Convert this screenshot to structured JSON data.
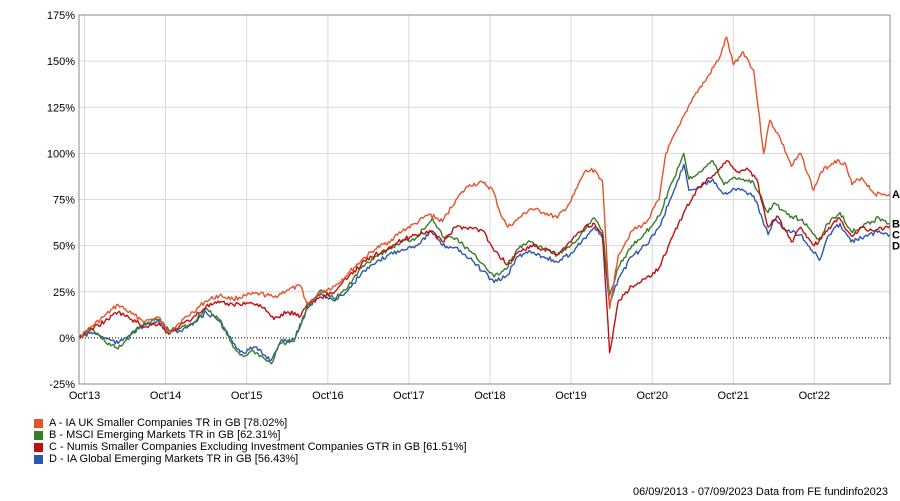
{
  "chart_data": {
    "type": "line",
    "ylim": [
      -25,
      175
    ],
    "y_ticks": [
      -25,
      0,
      25,
      50,
      75,
      100,
      125,
      150,
      175
    ],
    "y_tick_labels": [
      "-25%",
      "0%",
      "25%",
      "50%",
      "75%",
      "100%",
      "125%",
      "150%",
      "175%"
    ],
    "x_range": [
      "2013-09-06",
      "2023-09-07"
    ],
    "x_ticks": [
      "2013-10-01",
      "2014-10-01",
      "2015-10-01",
      "2016-10-01",
      "2017-10-01",
      "2018-10-01",
      "2019-10-01",
      "2020-10-01",
      "2021-10-01",
      "2022-10-01"
    ],
    "x_tick_labels": [
      "Oct'13",
      "Oct'14",
      "Oct'15",
      "Oct'16",
      "Oct'17",
      "Oct'18",
      "Oct'19",
      "Oct'20",
      "Oct'21",
      "Oct'22"
    ],
    "grid": true,
    "zero_line": "dotted",
    "legend_position": "bottom-left",
    "series": [
      {
        "letter": "A",
        "name": "A - IA UK Smaller Companies TR in GB [78.02%]",
        "color": "#e8522b",
        "points": [
          [
            "2013-09-06",
            0
          ],
          [
            "2013-11-01",
            6
          ],
          [
            "2014-01-01",
            12
          ],
          [
            "2014-03-01",
            18
          ],
          [
            "2014-05-01",
            13
          ],
          [
            "2014-07-01",
            9
          ],
          [
            "2014-09-01",
            11
          ],
          [
            "2014-10-15",
            3
          ],
          [
            "2014-12-01",
            8
          ],
          [
            "2015-02-01",
            14
          ],
          [
            "2015-04-01",
            20
          ],
          [
            "2015-06-01",
            23
          ],
          [
            "2015-08-01",
            21
          ],
          [
            "2015-10-01",
            23
          ],
          [
            "2015-12-01",
            24
          ],
          [
            "2016-02-01",
            22
          ],
          [
            "2016-04-01",
            26
          ],
          [
            "2016-06-01",
            28
          ],
          [
            "2016-07-01",
            18
          ],
          [
            "2016-09-01",
            25
          ],
          [
            "2016-11-01",
            28
          ],
          [
            "2017-01-01",
            35
          ],
          [
            "2017-03-01",
            42
          ],
          [
            "2017-05-01",
            48
          ],
          [
            "2017-07-01",
            52
          ],
          [
            "2017-09-01",
            58
          ],
          [
            "2017-11-01",
            62
          ],
          [
            "2018-01-01",
            67
          ],
          [
            "2018-03-01",
            63
          ],
          [
            "2018-05-01",
            75
          ],
          [
            "2018-07-01",
            83
          ],
          [
            "2018-09-01",
            84
          ],
          [
            "2018-10-15",
            80
          ],
          [
            "2018-11-15",
            68
          ],
          [
            "2018-12-20",
            60
          ],
          [
            "2019-02-01",
            64
          ],
          [
            "2019-04-01",
            70
          ],
          [
            "2019-06-01",
            68
          ],
          [
            "2019-08-01",
            65
          ],
          [
            "2019-10-01",
            74
          ],
          [
            "2019-12-01",
            90
          ],
          [
            "2020-01-15",
            91
          ],
          [
            "2020-02-20",
            85
          ],
          [
            "2020-03-23",
            16
          ],
          [
            "2020-05-01",
            45
          ],
          [
            "2020-07-01",
            58
          ],
          [
            "2020-09-01",
            62
          ],
          [
            "2020-11-01",
            75
          ],
          [
            "2020-12-01",
            100
          ],
          [
            "2021-02-01",
            115
          ],
          [
            "2021-04-01",
            130
          ],
          [
            "2021-06-01",
            140
          ],
          [
            "2021-08-01",
            152
          ],
          [
            "2021-09-01",
            163
          ],
          [
            "2021-10-01",
            148
          ],
          [
            "2021-11-15",
            155
          ],
          [
            "2022-01-01",
            145
          ],
          [
            "2022-02-15",
            100
          ],
          [
            "2022-03-15",
            118
          ],
          [
            "2022-05-01",
            108
          ],
          [
            "2022-06-20",
            93
          ],
          [
            "2022-08-01",
            100
          ],
          [
            "2022-09-28",
            80
          ],
          [
            "2022-11-01",
            90
          ],
          [
            "2023-01-01",
            96
          ],
          [
            "2023-02-15",
            95
          ],
          [
            "2023-03-20",
            83
          ],
          [
            "2023-05-01",
            87
          ],
          [
            "2023-07-01",
            78
          ],
          [
            "2023-09-07",
            78
          ]
        ]
      },
      {
        "letter": "B",
        "name": "B - MSCI Emerging Markets TR in GB [62.31%]",
        "color": "#3a7c2a",
        "points": [
          [
            "2013-09-06",
            0
          ],
          [
            "2013-11-01",
            5
          ],
          [
            "2014-01-01",
            -2
          ],
          [
            "2014-03-01",
            -6
          ],
          [
            "2014-05-01",
            2
          ],
          [
            "2014-07-01",
            8
          ],
          [
            "2014-09-01",
            10
          ],
          [
            "2014-10-15",
            4
          ],
          [
            "2014-12-01",
            5
          ],
          [
            "2015-02-01",
            8
          ],
          [
            "2015-04-01",
            16
          ],
          [
            "2015-06-01",
            10
          ],
          [
            "2015-08-01",
            -5
          ],
          [
            "2015-09-15",
            -10
          ],
          [
            "2015-11-01",
            -7
          ],
          [
            "2016-01-20",
            -14
          ],
          [
            "2016-03-01",
            -3
          ],
          [
            "2016-05-01",
            -2
          ],
          [
            "2016-07-01",
            17
          ],
          [
            "2016-09-01",
            26
          ],
          [
            "2016-11-01",
            21
          ],
          [
            "2017-01-01",
            28
          ],
          [
            "2017-03-01",
            38
          ],
          [
            "2017-05-01",
            44
          ],
          [
            "2017-07-01",
            48
          ],
          [
            "2017-09-01",
            52
          ],
          [
            "2017-11-01",
            54
          ],
          [
            "2018-01-15",
            65
          ],
          [
            "2018-03-01",
            55
          ],
          [
            "2018-05-01",
            54
          ],
          [
            "2018-07-01",
            47
          ],
          [
            "2018-09-01",
            40
          ],
          [
            "2018-10-20",
            33
          ],
          [
            "2018-12-20",
            38
          ],
          [
            "2019-02-01",
            48
          ],
          [
            "2019-04-01",
            52
          ],
          [
            "2019-06-01",
            48
          ],
          [
            "2019-08-01",
            45
          ],
          [
            "2019-10-01",
            50
          ],
          [
            "2019-12-01",
            58
          ],
          [
            "2020-01-15",
            65
          ],
          [
            "2020-02-20",
            58
          ],
          [
            "2020-03-23",
            23
          ],
          [
            "2020-05-01",
            38
          ],
          [
            "2020-07-01",
            50
          ],
          [
            "2020-09-01",
            57
          ],
          [
            "2020-11-01",
            66
          ],
          [
            "2021-01-01",
            85
          ],
          [
            "2021-02-20",
            100
          ],
          [
            "2021-03-15",
            86
          ],
          [
            "2021-05-01",
            90
          ],
          [
            "2021-07-01",
            96
          ],
          [
            "2021-08-20",
            83
          ],
          [
            "2021-10-01",
            87
          ],
          [
            "2021-11-15",
            86
          ],
          [
            "2022-01-01",
            84
          ],
          [
            "2022-03-07",
            68
          ],
          [
            "2022-04-01",
            73
          ],
          [
            "2022-06-01",
            67
          ],
          [
            "2022-08-01",
            64
          ],
          [
            "2022-10-25",
            53
          ],
          [
            "2022-12-01",
            62
          ],
          [
            "2023-01-25",
            68
          ],
          [
            "2023-03-15",
            58
          ],
          [
            "2023-05-01",
            60
          ],
          [
            "2023-07-20",
            65
          ],
          [
            "2023-09-07",
            62
          ]
        ]
      },
      {
        "letter": "C",
        "name": "C - Numis Smaller Companies Excluding Investment Companies GTR in GB [61.51%]",
        "color": "#c01010",
        "points": [
          [
            "2013-09-06",
            0
          ],
          [
            "2013-11-01",
            5
          ],
          [
            "2014-01-01",
            9
          ],
          [
            "2014-03-01",
            14
          ],
          [
            "2014-05-01",
            10
          ],
          [
            "2014-07-01",
            6
          ],
          [
            "2014-09-01",
            8
          ],
          [
            "2014-10-15",
            2
          ],
          [
            "2014-12-01",
            6
          ],
          [
            "2015-02-01",
            11
          ],
          [
            "2015-04-01",
            17
          ],
          [
            "2015-06-01",
            19
          ],
          [
            "2015-08-01",
            18
          ],
          [
            "2015-10-01",
            19
          ],
          [
            "2015-12-01",
            18
          ],
          [
            "2016-02-01",
            10
          ],
          [
            "2016-04-01",
            14
          ],
          [
            "2016-06-01",
            12
          ],
          [
            "2016-07-01",
            19
          ],
          [
            "2016-09-01",
            22
          ],
          [
            "2016-11-01",
            25
          ],
          [
            "2017-01-01",
            33
          ],
          [
            "2017-03-01",
            40
          ],
          [
            "2017-05-01",
            45
          ],
          [
            "2017-07-01",
            49
          ],
          [
            "2017-09-01",
            53
          ],
          [
            "2017-11-01",
            56
          ],
          [
            "2018-01-01",
            58
          ],
          [
            "2018-03-01",
            52
          ],
          [
            "2018-05-01",
            60
          ],
          [
            "2018-07-01",
            60
          ],
          [
            "2018-09-01",
            58
          ],
          [
            "2018-10-20",
            47
          ],
          [
            "2018-12-20",
            40
          ],
          [
            "2019-02-01",
            46
          ],
          [
            "2019-04-01",
            50
          ],
          [
            "2019-06-01",
            48
          ],
          [
            "2019-08-01",
            45
          ],
          [
            "2019-10-01",
            52
          ],
          [
            "2019-12-01",
            60
          ],
          [
            "2020-01-15",
            62
          ],
          [
            "2020-02-20",
            56
          ],
          [
            "2020-03-23",
            -8
          ],
          [
            "2020-05-01",
            20
          ],
          [
            "2020-07-01",
            28
          ],
          [
            "2020-09-01",
            32
          ],
          [
            "2020-11-01",
            38
          ],
          [
            "2021-01-01",
            55
          ],
          [
            "2021-03-01",
            70
          ],
          [
            "2021-05-01",
            82
          ],
          [
            "2021-07-01",
            88
          ],
          [
            "2021-09-01",
            96
          ],
          [
            "2021-10-15",
            90
          ],
          [
            "2021-12-01",
            92
          ],
          [
            "2022-01-15",
            86
          ],
          [
            "2022-03-07",
            60
          ],
          [
            "2022-04-15",
            66
          ],
          [
            "2022-06-20",
            52
          ],
          [
            "2022-08-01",
            60
          ],
          [
            "2022-10-01",
            50
          ],
          [
            "2022-11-15",
            56
          ],
          [
            "2023-01-15",
            65
          ],
          [
            "2023-03-20",
            55
          ],
          [
            "2023-05-01",
            60
          ],
          [
            "2023-07-01",
            58
          ],
          [
            "2023-09-07",
            61
          ]
        ]
      },
      {
        "letter": "D",
        "name": "D - IA Global Emerging Markets TR in GB [56.43%]",
        "color": "#2c56b0",
        "points": [
          [
            "2013-09-06",
            0
          ],
          [
            "2013-11-01",
            3
          ],
          [
            "2014-01-01",
            0
          ],
          [
            "2014-03-01",
            -3
          ],
          [
            "2014-05-01",
            3
          ],
          [
            "2014-07-01",
            7
          ],
          [
            "2014-09-01",
            9
          ],
          [
            "2014-10-15",
            3
          ],
          [
            "2014-12-01",
            4
          ],
          [
            "2015-02-01",
            7
          ],
          [
            "2015-04-01",
            14
          ],
          [
            "2015-06-01",
            9
          ],
          [
            "2015-08-01",
            -3
          ],
          [
            "2015-09-15",
            -8
          ],
          [
            "2015-11-01",
            -5
          ],
          [
            "2016-01-20",
            -12
          ],
          [
            "2016-03-01",
            -2
          ],
          [
            "2016-05-01",
            -1
          ],
          [
            "2016-07-01",
            16
          ],
          [
            "2016-09-01",
            24
          ],
          [
            "2016-11-01",
            20
          ],
          [
            "2017-01-01",
            26
          ],
          [
            "2017-03-01",
            35
          ],
          [
            "2017-05-01",
            40
          ],
          [
            "2017-07-01",
            45
          ],
          [
            "2017-09-01",
            48
          ],
          [
            "2017-11-01",
            50
          ],
          [
            "2018-01-15",
            58
          ],
          [
            "2018-03-01",
            50
          ],
          [
            "2018-05-01",
            49
          ],
          [
            "2018-07-01",
            43
          ],
          [
            "2018-09-01",
            36
          ],
          [
            "2018-10-20",
            30
          ],
          [
            "2018-12-20",
            34
          ],
          [
            "2019-02-01",
            44
          ],
          [
            "2019-04-01",
            47
          ],
          [
            "2019-06-01",
            44
          ],
          [
            "2019-08-01",
            41
          ],
          [
            "2019-10-01",
            46
          ],
          [
            "2019-12-01",
            54
          ],
          [
            "2020-01-15",
            60
          ],
          [
            "2020-02-20",
            54
          ],
          [
            "2020-03-23",
            18
          ],
          [
            "2020-05-01",
            32
          ],
          [
            "2020-07-01",
            44
          ],
          [
            "2020-09-01",
            50
          ],
          [
            "2020-11-01",
            60
          ],
          [
            "2021-01-01",
            78
          ],
          [
            "2021-02-20",
            94
          ],
          [
            "2021-03-15",
            80
          ],
          [
            "2021-05-01",
            82
          ],
          [
            "2021-07-01",
            86
          ],
          [
            "2021-08-20",
            78
          ],
          [
            "2021-10-01",
            81
          ],
          [
            "2021-11-15",
            80
          ],
          [
            "2022-01-01",
            77
          ],
          [
            "2022-03-07",
            56
          ],
          [
            "2022-04-01",
            64
          ],
          [
            "2022-06-01",
            58
          ],
          [
            "2022-08-01",
            56
          ],
          [
            "2022-10-25",
            42
          ],
          [
            "2022-12-01",
            55
          ],
          [
            "2023-01-25",
            62
          ],
          [
            "2023-03-15",
            52
          ],
          [
            "2023-05-01",
            54
          ],
          [
            "2023-07-20",
            58
          ],
          [
            "2023-09-07",
            56
          ]
        ]
      }
    ],
    "footer": "06/09/2013 - 07/09/2023 Data from FE fundinfo2023"
  }
}
